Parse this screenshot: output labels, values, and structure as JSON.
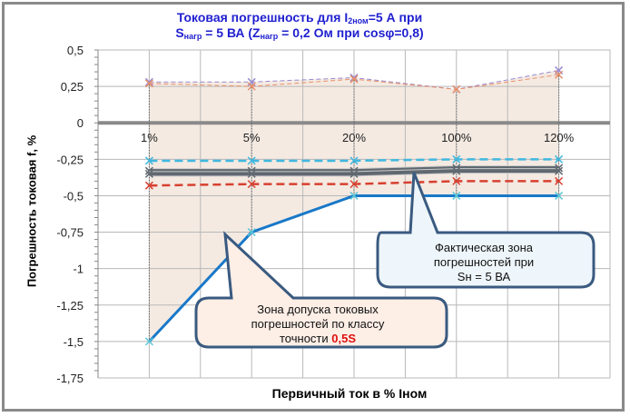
{
  "title": {
    "line1_a": "Токовая погрешность для I",
    "line1_sub": "2ном",
    "line1_b": "=5 А при",
    "line2_a": "S",
    "line2_sub": "нагр",
    "line2_b": " = 5 ВА (Z",
    "line2_sub2": "нагр",
    "line2_c": " = 0,2 Ом при cosφ=0,8)"
  },
  "chart_data": {
    "type": "line",
    "xlabel": "Первичный ток в % Iном",
    "ylabel": "Погрешность токовая f, %",
    "categories": [
      "1%",
      "5%",
      "20%",
      "100%",
      "120%"
    ],
    "ylim": [
      -1.75,
      0.5
    ],
    "yticks": [
      "0,5",
      "0,25",
      "0",
      "-0,25",
      "-0,5",
      "-0,75",
      "-1",
      "-1,25",
      "-1,5",
      "-1,75"
    ],
    "ytick_values": [
      0.5,
      0.25,
      0,
      -0.25,
      -0.5,
      -0.75,
      -1,
      -1.25,
      -1.5,
      -1.75
    ],
    "grid": true,
    "series": [
      {
        "values": [
          0.28,
          0.28,
          0.31,
          0.23,
          0.36
        ],
        "color": "#9a8ad0",
        "style": "dashed"
      },
      {
        "values": [
          0.27,
          0.25,
          0.3,
          0.23,
          0.33
        ],
        "color": "#e8906a",
        "style": "dashed"
      },
      {
        "values": [
          -0.26,
          -0.26,
          -0.26,
          -0.25,
          -0.25
        ],
        "color": "#40b8e0",
        "style": "dashed"
      },
      {
        "values": [
          -0.33,
          -0.33,
          -0.33,
          -0.31,
          -0.31
        ],
        "color": "#606870",
        "style": "thick"
      },
      {
        "values": [
          -0.35,
          -0.35,
          -0.35,
          -0.33,
          -0.33
        ],
        "color": "#606870",
        "style": "thick"
      },
      {
        "values": [
          -0.43,
          -0.42,
          -0.42,
          -0.4,
          -0.4
        ],
        "color": "#d84030",
        "style": "dashed"
      },
      {
        "values": [
          -1.5,
          -0.75,
          -0.5,
          -0.5,
          -0.5
        ],
        "color": "#1878c8",
        "style": "solid"
      }
    ],
    "tolerance_zone_fill": "#f3e8df"
  },
  "callouts": {
    "actual": {
      "lines": [
        "Фактическая зона",
        "погрешностей при",
        "Sн = 5 ВА"
      ]
    },
    "tolerance": {
      "line1": "Зона допуска токовых",
      "line2": "погрешностей по классу",
      "line3_a": "точности ",
      "line3_b": "0,5S"
    }
  }
}
